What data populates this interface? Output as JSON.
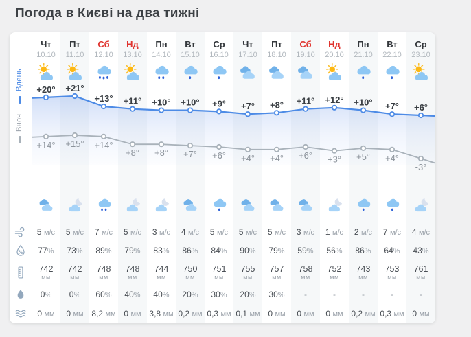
{
  "title": "Погода в Києві на два тижні",
  "legend": {
    "day": "Вдень",
    "night": "Вночі"
  },
  "colors": {
    "accent_blue": "#4d8be6",
    "line_gray": "#a9b2ba",
    "weekend_red": "#e03530",
    "cloud": "#8ec7f4",
    "cloud_dark": "#70b1e9",
    "cloud_light": "#a6d3f8",
    "sun": "#fdb813",
    "sun_ray": "#fbc02d",
    "raindrop": "#2e63d8",
    "moon": "#d9e1ee",
    "row_icon": "#93a8bd",
    "day_temp_text": "#383d42",
    "night_temp_text": "#8c939b"
  },
  "stat_rows": [
    {
      "key": "wind",
      "icon": "wind-icon"
    },
    {
      "key": "humidity",
      "icon": "humidity-icon"
    },
    {
      "key": "pressure",
      "icon": "pressure-icon"
    },
    {
      "key": "precip_prob",
      "icon": "precip-probability-icon"
    },
    {
      "key": "precip_amount",
      "icon": "precip-amount-icon"
    }
  ],
  "columns": [
    {
      "day": "Чт",
      "date": "10.10",
      "weekend": false,
      "icon_day": "sun-cloud",
      "icon_night": "clouds",
      "temp_day": {
        "label": "+20°",
        "value": 20
      },
      "temp_night": {
        "label": "+14°",
        "value": 14
      },
      "wind": {
        "v": "5",
        "u": "м/с"
      },
      "humidity": {
        "v": "77",
        "u": "%"
      },
      "pressure": {
        "v": "742",
        "u": "мм"
      },
      "precip_prob": {
        "v": "0",
        "u": "%"
      },
      "precip_amount": {
        "v": "0",
        "u": "мм"
      }
    },
    {
      "day": "Пт",
      "date": "11.10",
      "weekend": false,
      "icon_day": "sun-cloud",
      "icon_night": "moon-cloud",
      "temp_day": {
        "label": "+21°",
        "value": 21
      },
      "temp_night": {
        "label": "+15°",
        "value": 15
      },
      "wind": {
        "v": "5",
        "u": "м/с"
      },
      "humidity": {
        "v": "73",
        "u": "%"
      },
      "pressure": {
        "v": "742",
        "u": "мм"
      },
      "precip_prob": {
        "v": "0",
        "u": "%"
      },
      "precip_amount": {
        "v": "0",
        "u": "мм"
      }
    },
    {
      "day": "Сб",
      "date": "12.10",
      "weekend": true,
      "icon_day": "cloud-rain-3",
      "icon_night": "cloud-rain-2",
      "temp_day": {
        "label": "+13°",
        "value": 13
      },
      "temp_night": {
        "label": "+14°",
        "value": 14
      },
      "wind": {
        "v": "7",
        "u": "м/с"
      },
      "humidity": {
        "v": "89",
        "u": "%"
      },
      "pressure": {
        "v": "748",
        "u": "мм"
      },
      "precip_prob": {
        "v": "60",
        "u": "%"
      },
      "precip_amount": {
        "v": "8,2",
        "u": "мм"
      }
    },
    {
      "day": "Нд",
      "date": "13.10",
      "weekend": true,
      "icon_day": "sun-cloud",
      "icon_night": "moon-cloud",
      "temp_day": {
        "label": "+11°",
        "value": 11
      },
      "temp_night": {
        "label": "+8°",
        "value": 8
      },
      "wind": {
        "v": "5",
        "u": "м/с"
      },
      "humidity": {
        "v": "79",
        "u": "%"
      },
      "pressure": {
        "v": "748",
        "u": "мм"
      },
      "precip_prob": {
        "v": "40",
        "u": "%"
      },
      "precip_amount": {
        "v": "0",
        "u": "мм"
      }
    },
    {
      "day": "Пн",
      "date": "14.10",
      "weekend": false,
      "icon_day": "cloud-rain-2",
      "icon_night": "moon-cloud",
      "temp_day": {
        "label": "+10°",
        "value": 10
      },
      "temp_night": {
        "label": "+8°",
        "value": 8
      },
      "wind": {
        "v": "3",
        "u": "м/с"
      },
      "humidity": {
        "v": "83",
        "u": "%"
      },
      "pressure": {
        "v": "744",
        "u": "мм"
      },
      "precip_prob": {
        "v": "40",
        "u": "%"
      },
      "precip_amount": {
        "v": "3,8",
        "u": "мм"
      }
    },
    {
      "day": "Вт",
      "date": "15.10",
      "weekend": false,
      "icon_day": "cloud-rain-1",
      "icon_night": "clouds",
      "temp_day": {
        "label": "+10°",
        "value": 10
      },
      "temp_night": {
        "label": "+7°",
        "value": 7
      },
      "wind": {
        "v": "4",
        "u": "м/с"
      },
      "humidity": {
        "v": "86",
        "u": "%"
      },
      "pressure": {
        "v": "750",
        "u": "мм"
      },
      "precip_prob": {
        "v": "20",
        "u": "%"
      },
      "precip_amount": {
        "v": "0,2",
        "u": "мм"
      }
    },
    {
      "day": "Ср",
      "date": "16.10",
      "weekend": false,
      "icon_day": "cloud-rain-1",
      "icon_night": "cloud-rain-1",
      "temp_day": {
        "label": "+9°",
        "value": 9
      },
      "temp_night": {
        "label": "+6°",
        "value": 6
      },
      "wind": {
        "v": "5",
        "u": "м/с"
      },
      "humidity": {
        "v": "84",
        "u": "%"
      },
      "pressure": {
        "v": "751",
        "u": "мм"
      },
      "precip_prob": {
        "v": "30",
        "u": "%"
      },
      "precip_amount": {
        "v": "0,3",
        "u": "мм"
      }
    },
    {
      "day": "Чт",
      "date": "17.10",
      "weekend": false,
      "icon_day": "clouds",
      "icon_night": "clouds",
      "temp_day": {
        "label": "+7°",
        "value": 7
      },
      "temp_night": {
        "label": "+4°",
        "value": 4
      },
      "wind": {
        "v": "5",
        "u": "м/с"
      },
      "humidity": {
        "v": "90",
        "u": "%"
      },
      "pressure": {
        "v": "755",
        "u": "мм"
      },
      "precip_prob": {
        "v": "20",
        "u": "%"
      },
      "precip_amount": {
        "v": "0,1",
        "u": "мм"
      }
    },
    {
      "day": "Пт",
      "date": "18.10",
      "weekend": false,
      "icon_day": "clouds",
      "icon_night": "clouds",
      "temp_day": {
        "label": "+8°",
        "value": 8
      },
      "temp_night": {
        "label": "+4°",
        "value": 4
      },
      "wind": {
        "v": "5",
        "u": "м/с"
      },
      "humidity": {
        "v": "79",
        "u": "%"
      },
      "pressure": {
        "v": "757",
        "u": "мм"
      },
      "precip_prob": {
        "v": "30",
        "u": "%"
      },
      "precip_amount": {
        "v": "0",
        "u": "мм"
      }
    },
    {
      "day": "Сб",
      "date": "19.10",
      "weekend": true,
      "icon_day": "clouds",
      "icon_night": "clouds",
      "temp_day": {
        "label": "+11°",
        "value": 11
      },
      "temp_night": {
        "label": "+6°",
        "value": 6
      },
      "wind": {
        "v": "3",
        "u": "м/с"
      },
      "humidity": {
        "v": "59",
        "u": "%"
      },
      "pressure": {
        "v": "758",
        "u": "мм"
      },
      "precip_prob": {
        "v": "-",
        "u": ""
      },
      "precip_amount": {
        "v": "0",
        "u": "мм"
      }
    },
    {
      "day": "Нд",
      "date": "20.10",
      "weekend": true,
      "icon_day": "sun-cloud",
      "icon_night": "moon-cloud",
      "temp_day": {
        "label": "+12°",
        "value": 12
      },
      "temp_night": {
        "label": "+3°",
        "value": 3
      },
      "wind": {
        "v": "1",
        "u": "м/с"
      },
      "humidity": {
        "v": "56",
        "u": "%"
      },
      "pressure": {
        "v": "752",
        "u": "мм"
      },
      "precip_prob": {
        "v": "-",
        "u": ""
      },
      "precip_amount": {
        "v": "0",
        "u": "мм"
      }
    },
    {
      "day": "Пн",
      "date": "21.10",
      "weekend": false,
      "icon_day": "cloud-rain-1",
      "icon_night": "cloud-rain-1",
      "temp_day": {
        "label": "+10°",
        "value": 10
      },
      "temp_night": {
        "label": "+5°",
        "value": 5
      },
      "wind": {
        "v": "2",
        "u": "м/с"
      },
      "humidity": {
        "v": "86",
        "u": "%"
      },
      "pressure": {
        "v": "743",
        "u": "мм"
      },
      "precip_prob": {
        "v": "-",
        "u": ""
      },
      "precip_amount": {
        "v": "0,2",
        "u": "мм"
      }
    },
    {
      "day": "Вт",
      "date": "22.10",
      "weekend": false,
      "icon_day": "cloud-rain-1",
      "icon_night": "cloud-rain-1",
      "temp_day": {
        "label": "+7°",
        "value": 7
      },
      "temp_night": {
        "label": "+4°",
        "value": 4
      },
      "wind": {
        "v": "7",
        "u": "м/с"
      },
      "humidity": {
        "v": "64",
        "u": "%"
      },
      "pressure": {
        "v": "753",
        "u": "мм"
      },
      "precip_prob": {
        "v": "-",
        "u": ""
      },
      "precip_amount": {
        "v": "0,3",
        "u": "мм"
      }
    },
    {
      "day": "Ср",
      "date": "23.10",
      "weekend": false,
      "icon_day": "sun-cloud",
      "icon_night": "moon-cloud",
      "temp_day": {
        "label": "+6°",
        "value": 6
      },
      "temp_night": {
        "label": "-3°",
        "value": -3
      },
      "wind": {
        "v": "4",
        "u": "м/с"
      },
      "humidity": {
        "v": "43",
        "u": "%"
      },
      "pressure": {
        "v": "761",
        "u": "мм"
      },
      "precip_prob": {
        "v": "-",
        "u": ""
      },
      "precip_amount": {
        "v": "0",
        "u": "мм"
      }
    }
  ]
}
